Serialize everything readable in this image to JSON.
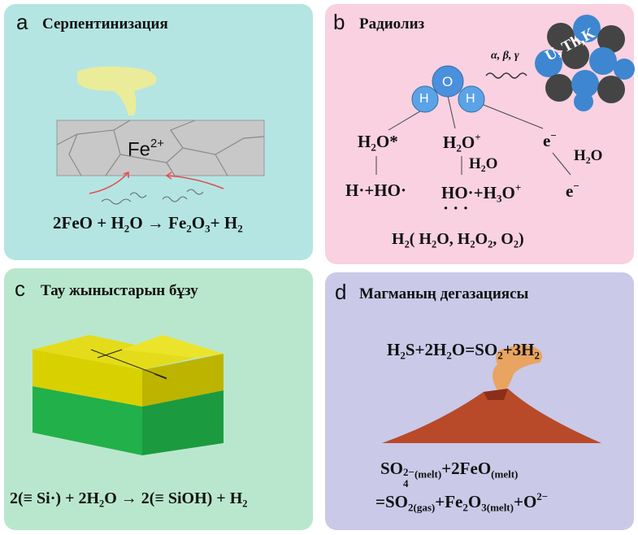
{
  "panels": [
    {
      "label": "a",
      "title": "Серпентинизация",
      "ion": "Fe",
      "ion_charge": "2+",
      "equation": [
        "2FeO + H",
        "2",
        "O → Fe",
        "2",
        "O",
        "3",
        "+ H",
        "2"
      ]
    },
    {
      "label": "b",
      "title": "Радиолиз",
      "radiation": "α, β, γ",
      "atoms": [
        "O",
        "H",
        "H"
      ],
      "nucleus": "U, Th,K",
      "products": {
        "excited": [
          "H",
          "2",
          "O*"
        ],
        "ion": [
          "H",
          "2",
          "O",
          "+"
        ],
        "electron": [
          "e",
          "−"
        ],
        "water_right": [
          "H",
          "2",
          "O"
        ],
        "water_mid": [
          "H",
          "2",
          "O"
        ],
        "radicals": "H·+HO·",
        "hydronium": [
          "HO·+H",
          "3",
          "O",
          "+"
        ],
        "solvated": [
          "e",
          "−"
        ],
        "dots": "· · ·",
        "final": [
          "H",
          "2",
          "( H",
          "2",
          "O, H",
          "2",
          "O",
          "2",
          ", O",
          "2",
          ")"
        ]
      }
    },
    {
      "label": "c",
      "title": "Тау жыныстарын бұзу",
      "equation": [
        "2(≡ Si·) + 2H",
        "2",
        "O → 2(≡ SiOH) + H",
        "2"
      ]
    },
    {
      "label": "d",
      "title": "Магманың дегазациясы",
      "equation1": [
        "H",
        "2",
        "S+2H",
        "2",
        "O=SO",
        "2",
        "+3H",
        "2"
      ],
      "equation2": [
        "SO",
        "4",
        "2−",
        "(melt)",
        "+2FeO",
        "(melt)"
      ],
      "equation3": [
        "=SO",
        "2(gas)",
        "+Fe",
        "2",
        "O",
        "3(melt)",
        "+O",
        "2−"
      ]
    }
  ]
}
